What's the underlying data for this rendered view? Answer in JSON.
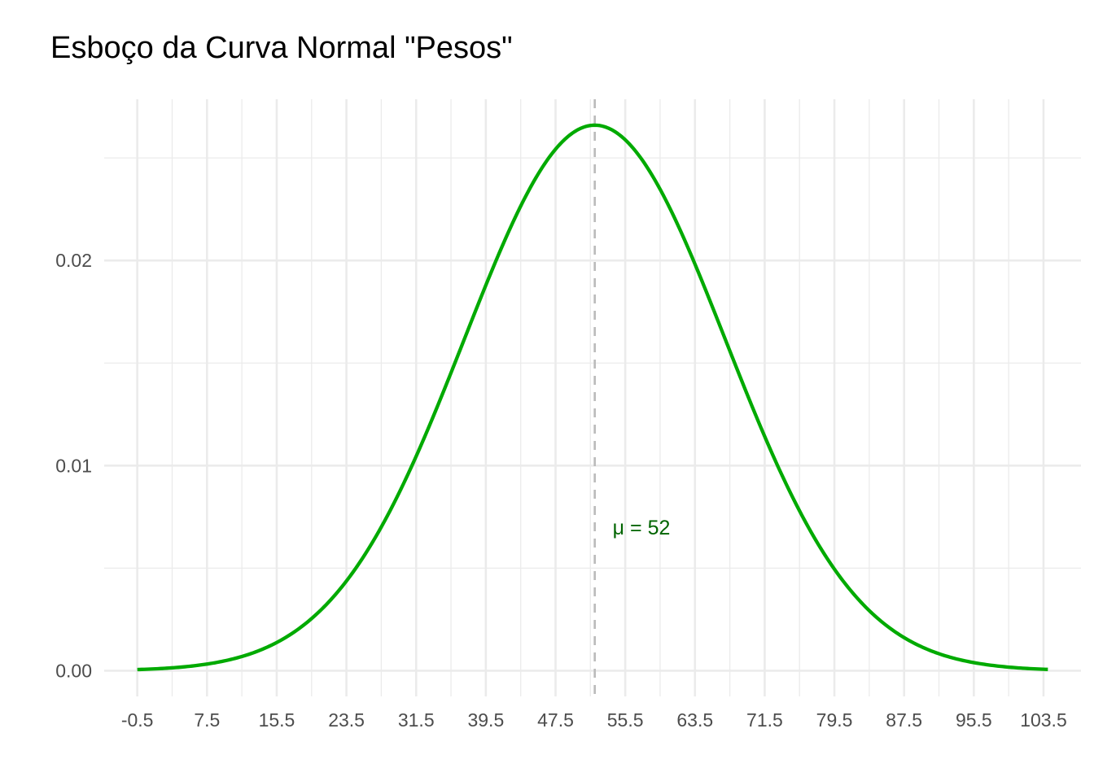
{
  "chart_data": {
    "type": "line",
    "title": "Esboço da Curva Normal \"Pesos\"",
    "xlabel": "",
    "ylabel": "",
    "distribution": {
      "family": "normal",
      "mean": 52,
      "sd": 15
    },
    "x_range": [
      -0.5,
      104.0
    ],
    "xlim": [
      -4.3,
      107.8
    ],
    "ylim": [
      -0.00125,
      0.02786
    ],
    "x_ticks": [
      -0.5,
      7.5,
      15.5,
      23.5,
      31.5,
      39.5,
      47.5,
      55.5,
      63.5,
      71.5,
      79.5,
      87.5,
      95.5,
      103.5
    ],
    "x_tick_labels": [
      "-0.5",
      "7.5",
      "15.5",
      "23.5",
      "31.5",
      "39.5",
      "47.5",
      "55.5",
      "63.5",
      "71.5",
      "79.5",
      "87.5",
      "95.5",
      "103.5"
    ],
    "y_ticks": [
      0.0,
      0.01,
      0.02
    ],
    "y_tick_labels": [
      "0.00",
      "0.01",
      "0.02"
    ],
    "grid": true,
    "legend": "none",
    "series": [
      {
        "color": "#00AA00",
        "x": [
          -0.5,
          7.5,
          15.5,
          23.5,
          31.5,
          39.5,
          47.5,
          52,
          55.5,
          63.5,
          71.5,
          79.5,
          87.5,
          95.5,
          104.0
        ],
        "y": [
          6e-05,
          0.00032,
          0.00137,
          0.00441,
          0.01046,
          0.01875,
          0.0254,
          0.0266,
          0.026,
          0.02073,
          0.01243,
          0.00563,
          0.00193,
          0.00049,
          7e-05
        ]
      }
    ],
    "reference_line": {
      "x": 52,
      "style": "dashed",
      "color": "#BBBBBB"
    },
    "annotation": {
      "text": "μ = 52",
      "x": 52,
      "y": 0.007,
      "color": "#006400"
    }
  }
}
